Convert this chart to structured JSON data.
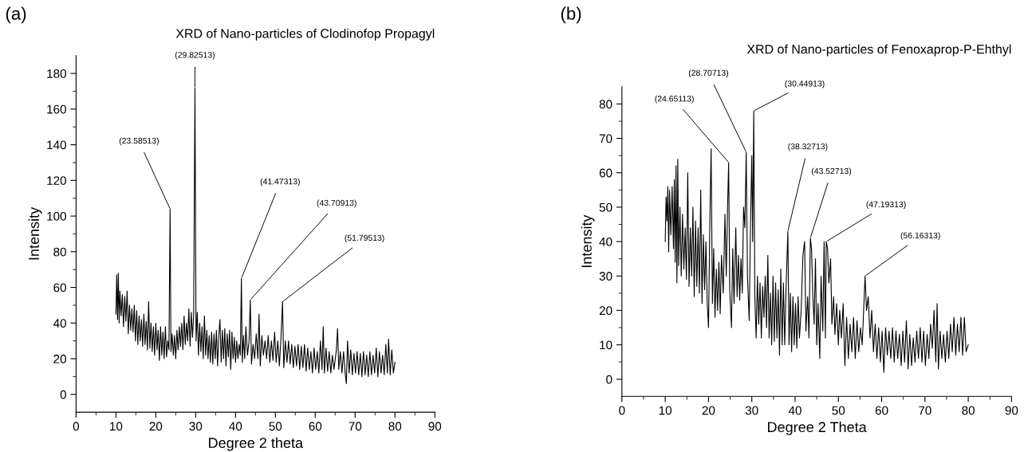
{
  "chart_data": [
    {
      "type": "line",
      "title": "XRD of Nano-particles of Clodinofop Propagyl",
      "xlabel": "Degree 2 theta",
      "ylabel": "Intensity",
      "xlim": [
        0,
        90
      ],
      "xticks": [
        0,
        10,
        20,
        30,
        40,
        50,
        60,
        70,
        80,
        90
      ],
      "ylim": [
        -10,
        190
      ],
      "yticks": [
        0,
        20,
        40,
        60,
        80,
        100,
        120,
        140,
        160,
        180
      ],
      "grid": false,
      "legend": false,
      "annotations": [
        "(a)",
        {
          "text": "(23.58513)",
          "x": 23.585,
          "y": 104
        },
        {
          "text": "(29.82513)",
          "x": 29.825,
          "y": 172
        },
        {
          "text": "(41.47313)",
          "x": 41.473,
          "y": 65
        },
        {
          "text": "(43.70913)",
          "x": 43.709,
          "y": 53
        },
        {
          "text": "(51.79513)",
          "x": 51.795,
          "y": 52
        }
      ],
      "series": [
        {
          "color": "#000000",
          "x": [
            10,
            10.2,
            10.4,
            10.6,
            10.8,
            11,
            11.3,
            11.6,
            11.9,
            12.2,
            12.5,
            12.8,
            13.1,
            13.4,
            13.7,
            14,
            14.3,
            14.6,
            14.9,
            15.2,
            15.5,
            15.8,
            16.1,
            16.4,
            16.7,
            17,
            17.3,
            17.6,
            17.9,
            18.2,
            18.5,
            18.8,
            19.1,
            19.4,
            19.7,
            20,
            20.3,
            20.6,
            20.9,
            21.2,
            21.5,
            21.8,
            22.1,
            22.4,
            22.7,
            23,
            23.3,
            23.585,
            23.8,
            24.1,
            24.4,
            24.7,
            25,
            25.3,
            25.6,
            25.9,
            26.2,
            26.5,
            26.8,
            27.1,
            27.4,
            27.7,
            28,
            28.3,
            28.6,
            28.9,
            29.2,
            29.5,
            29.825,
            30.1,
            30.4,
            30.7,
            31,
            31.3,
            31.6,
            31.9,
            32.2,
            32.5,
            32.8,
            33.1,
            33.4,
            33.7,
            34,
            34.3,
            34.6,
            34.9,
            35.2,
            35.5,
            35.8,
            36.1,
            36.4,
            36.7,
            37,
            37.3,
            37.6,
            37.9,
            38.2,
            38.5,
            38.8,
            39.1,
            39.4,
            39.7,
            40,
            40.3,
            40.6,
            40.9,
            41.2,
            41.473,
            41.7,
            42,
            42.3,
            42.6,
            43,
            43.4,
            43.709,
            44,
            44.4,
            44.8,
            45.2,
            45.6,
            45.9,
            46.2,
            46.6,
            47,
            47.4,
            47.8,
            48.2,
            48.6,
            49,
            49.4,
            49.8,
            50.2,
            50.6,
            51,
            51.4,
            51.795,
            52.1,
            52.5,
            52.9,
            53.3,
            53.7,
            54.1,
            54.5,
            54.9,
            55.3,
            55.7,
            56.1,
            56.5,
            56.9,
            57.3,
            57.7,
            58.1,
            58.5,
            58.9,
            59.3,
            59.7,
            60.1,
            60.5,
            60.9,
            61.3,
            61.7,
            62,
            62.3,
            62.7,
            63.1,
            63.5,
            63.9,
            64.3,
            64.7,
            65.3,
            65.6,
            65.9,
            66.3,
            66.7,
            67.1,
            67.5,
            67.8,
            68.1,
            68.5,
            68.9,
            69.3,
            69.7,
            70.1,
            70.5,
            70.9,
            71.3,
            71.7,
            72.1,
            72.5,
            72.9,
            73.3,
            73.7,
            74.1,
            74.5,
            74.9,
            75.3,
            75.7,
            76.1,
            76.5,
            76.9,
            77.3,
            77.7,
            78.1,
            78.4,
            78.8,
            79.2,
            79.6,
            80
          ],
          "values": [
            45,
            67,
            42,
            68,
            40,
            58,
            44,
            56,
            38,
            55,
            41,
            58,
            34,
            50,
            36,
            48,
            35,
            50,
            30,
            47,
            28,
            44,
            30,
            42,
            27,
            45,
            28,
            41,
            25,
            52,
            26,
            40,
            24,
            38,
            22,
            40,
            25,
            36,
            19,
            38,
            22,
            35,
            20,
            38,
            21,
            30,
            25,
            104,
            24,
            34,
            22,
            33,
            20,
            36,
            25,
            38,
            27,
            40,
            25,
            44,
            28,
            40,
            30,
            48,
            27,
            46,
            32,
            45,
            172,
            30,
            46,
            22,
            40,
            24,
            38,
            20,
            44,
            22,
            36,
            20,
            33,
            18,
            35,
            17,
            34,
            20,
            36,
            16,
            33,
            42,
            18,
            36,
            20,
            37,
            16,
            34,
            21,
            36,
            14,
            35,
            20,
            32,
            18,
            30,
            20,
            28,
            22,
            65,
            18,
            33,
            20,
            38,
            22,
            30,
            53,
            17,
            28,
            20,
            34,
            20,
            45,
            16,
            33,
            22,
            30,
            20,
            33,
            18,
            30,
            19,
            35,
            18,
            30,
            16,
            32,
            52,
            15,
            30,
            18,
            30,
            17,
            28,
            15,
            27,
            16,
            28,
            14,
            27,
            15,
            28,
            13,
            26,
            14,
            24,
            12,
            26,
            14,
            24,
            12,
            30,
            14,
            38,
            12,
            26,
            13,
            24,
            12,
            22,
            14,
            25,
            37,
            14,
            24,
            12,
            24,
            12,
            6,
            30,
            12,
            25,
            11,
            23,
            12,
            24,
            11,
            23,
            10,
            24,
            11,
            22,
            10,
            24,
            11,
            22,
            12,
            26,
            10,
            24,
            12,
            22,
            11,
            28,
            12,
            31,
            11,
            25,
            12,
            18
          ]
        }
      ]
    },
    {
      "type": "line",
      "title": "XRD of Nano-particles of Fenoxaprop-P-Ehthyl",
      "xlabel": "Degree 2 Theta",
      "ylabel": "Intensity",
      "xlim": [
        0,
        90
      ],
      "xticks": [
        0,
        10,
        20,
        30,
        40,
        50,
        60,
        70,
        80,
        90
      ],
      "ylim": [
        -5,
        85
      ],
      "yticks": [
        0,
        10,
        20,
        30,
        40,
        50,
        60,
        70,
        80
      ],
      "grid": false,
      "legend": false,
      "annotations": [
        "(b)",
        {
          "text": "(24.65113)",
          "x": 24.651,
          "y": 63
        },
        {
          "text": "(28.70713)",
          "x": 28.707,
          "y": 66
        },
        {
          "text": "(30.44913)",
          "x": 30.449,
          "y": 78
        },
        {
          "text": "(38.32713)",
          "x": 38.327,
          "y": 43
        },
        {
          "text": "(43.52713)",
          "x": 43.527,
          "y": 41
        },
        {
          "text": "(47.19313)",
          "x": 47.193,
          "y": 40
        },
        {
          "text": "(56.16313)",
          "x": 56.163,
          "y": 30
        }
      ],
      "series": [
        {
          "color": "#000000",
          "x": [
            10,
            10.2,
            10.4,
            10.6,
            10.8,
            11,
            11.3,
            11.6,
            11.9,
            12.1,
            12.3,
            12.5,
            12.7,
            12.9,
            13.1,
            13.4,
            13.7,
            14,
            14.3,
            14.6,
            14.9,
            15.2,
            15.5,
            15.8,
            16.1,
            16.4,
            16.7,
            17,
            17.3,
            17.6,
            17.9,
            18.2,
            18.5,
            18.8,
            19.1,
            19.4,
            19.7,
            20,
            20.3,
            20.6,
            20.9,
            21.2,
            21.5,
            21.8,
            22.1,
            22.4,
            22.7,
            23,
            23.4,
            23.8,
            24.1,
            24.4,
            24.651,
            24.9,
            25.3,
            25.6,
            25.9,
            26.3,
            26.6,
            26.9,
            27.2,
            27.5,
            27.8,
            28.1,
            28.4,
            28.707,
            29,
            29.4,
            29.7,
            30,
            30.2,
            30.449,
            30.7,
            31,
            31.3,
            31.6,
            31.9,
            32.2,
            32.5,
            32.8,
            33.1,
            33.4,
            33.7,
            34,
            34.3,
            34.6,
            34.9,
            35.2,
            35.5,
            35.8,
            36.1,
            36.4,
            36.7,
            37,
            37.3,
            37.6,
            37.9,
            38.327,
            38.6,
            38.9,
            39.2,
            39.5,
            39.8,
            40.1,
            40.4,
            40.7,
            41,
            41.4,
            41.8,
            42.2,
            42.5,
            42.9,
            43.2,
            43.527,
            43.8,
            44.1,
            44.4,
            44.7,
            45,
            45.3,
            45.7,
            46,
            46.4,
            46.7,
            47,
            47.193,
            47.5,
            47.8,
            48.2,
            48.5,
            48.9,
            49.2,
            49.6,
            50,
            50.3,
            50.7,
            51.1,
            51.5,
            51.9,
            52.3,
            52.7,
            53.1,
            53.5,
            53.9,
            54.3,
            54.7,
            55.1,
            55.5,
            55.9,
            56.163,
            56.5,
            56.9,
            57.3,
            57.7,
            58.1,
            58.5,
            58.9,
            59.3,
            59.7,
            60.1,
            60.5,
            60.9,
            61.3,
            61.7,
            62.1,
            62.5,
            62.9,
            63.3,
            63.7,
            64.1,
            64.5,
            64.9,
            65.3,
            65.7,
            66.1,
            66.5,
            66.9,
            67.3,
            67.7,
            68.1,
            68.5,
            68.9,
            69.3,
            69.7,
            70.1,
            70.5,
            70.9,
            71.3,
            71.7,
            72.1,
            72.5,
            72.8,
            73.1,
            73.5,
            73.9,
            74.3,
            74.7,
            75.1,
            75.5,
            75.9,
            76.3,
            76.7,
            77.1,
            77.5,
            77.9,
            78.3,
            78.7,
            79.1,
            79.5,
            80
          ],
          "values": [
            40,
            53,
            46,
            56,
            37,
            55,
            42,
            56,
            38,
            58,
            34,
            62,
            28,
            64,
            33,
            50,
            30,
            48,
            32,
            44,
            29,
            60,
            27,
            44,
            30,
            50,
            24,
            46,
            27,
            44,
            25,
            55,
            22,
            42,
            26,
            40,
            22,
            15,
            45,
            67,
            22,
            38,
            18,
            32,
            20,
            34,
            19,
            36,
            25,
            48,
            30,
            50,
            63,
            26,
            15,
            38,
            22,
            44,
            24,
            36,
            23,
            35,
            25,
            50,
            44,
            66,
            30,
            17,
            45,
            65,
            40,
            78,
            24,
            12,
            30,
            16,
            28,
            12,
            27,
            18,
            30,
            15,
            36,
            12,
            25,
            10,
            30,
            11,
            28,
            12,
            26,
            7,
            32,
            10,
            28,
            10,
            26,
            43,
            10,
            25,
            8,
            24,
            10,
            22,
            9,
            24,
            12,
            20,
            36,
            40,
            14,
            24,
            12,
            41,
            38,
            24,
            16,
            35,
            10,
            22,
            6,
            30,
            14,
            40,
            12,
            40,
            38,
            28,
            35,
            16,
            24,
            13,
            22,
            10,
            20,
            12,
            22,
            4,
            18,
            6,
            16,
            8,
            18,
            6,
            17,
            8,
            15,
            10,
            22,
            30,
            20,
            24,
            12,
            20,
            8,
            16,
            6,
            15,
            5,
            14,
            2,
            15,
            7,
            14,
            6,
            15,
            5,
            14,
            6,
            13,
            4,
            14,
            5,
            17,
            3,
            13,
            4,
            12,
            5,
            14,
            6,
            15,
            5,
            14,
            4,
            13,
            6,
            16,
            9,
            20,
            5,
            22,
            3,
            14,
            6,
            13,
            5,
            14,
            6,
            16,
            8,
            18,
            7,
            16,
            8,
            18,
            7,
            18,
            8,
            10
          ]
        }
      ]
    }
  ]
}
